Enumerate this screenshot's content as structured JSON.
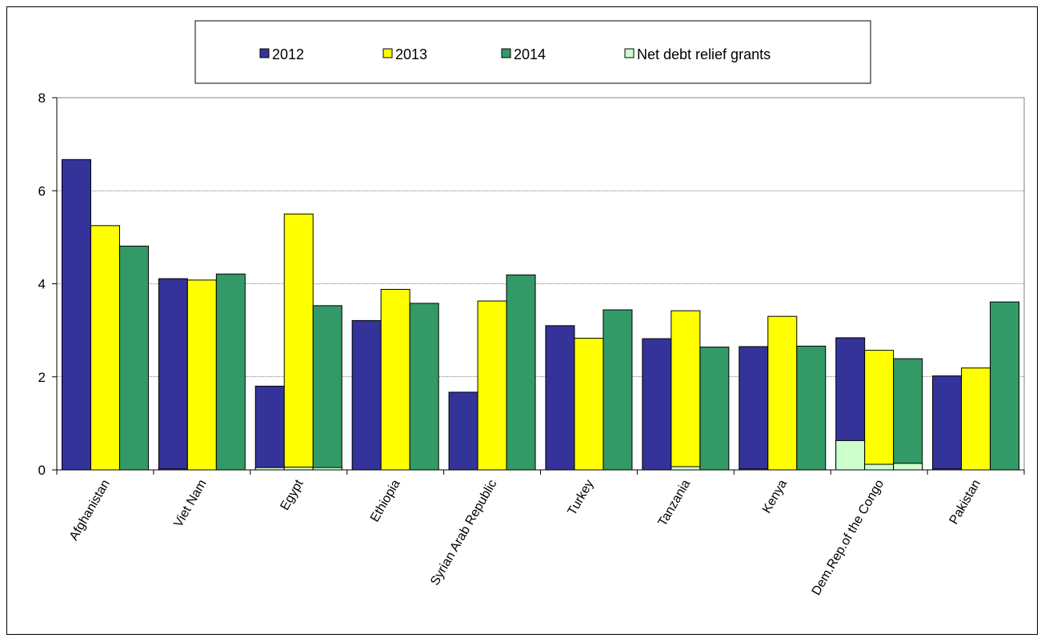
{
  "chart_data": {
    "type": "bar",
    "title": "",
    "xlabel": "",
    "ylabel": "",
    "ylim": [
      0,
      8
    ],
    "yticks": [
      0,
      2,
      4,
      6,
      8
    ],
    "grid": true,
    "legend_position": "top",
    "categories": [
      "Afghanistan",
      "Viet Nam",
      "Egypt",
      "Ethiopia",
      "Syrian Arab Republic",
      "Turkey",
      "Tanzania",
      "Kenya",
      "Dem.Rep.of the Congo",
      "Pakistan"
    ],
    "series": [
      {
        "name": "2012",
        "color": "#333399",
        "values": [
          6.67,
          4.11,
          1.8,
          3.21,
          1.67,
          3.1,
          2.82,
          2.65,
          2.84,
          2.02
        ]
      },
      {
        "name": "2013",
        "color": "#ffff00",
        "values": [
          5.25,
          4.08,
          5.5,
          3.88,
          3.63,
          2.83,
          3.42,
          3.3,
          2.57,
          2.19
        ]
      },
      {
        "name": "2014",
        "color": "#339966",
        "values": [
          4.81,
          4.21,
          3.53,
          3.58,
          4.19,
          3.44,
          2.64,
          2.66,
          2.39,
          3.61
        ]
      }
    ],
    "overlay_series": {
      "name": "Net debt relief grants",
      "color": "#ccffcc",
      "values": [
        [
          0.0,
          0.0,
          0.0
        ],
        [
          0.02,
          0.0,
          0.0
        ],
        [
          0.05,
          0.06,
          0.05
        ],
        [
          0.0,
          0.0,
          0.0
        ],
        [
          0.0,
          0.0,
          0.0
        ],
        [
          0.0,
          0.0,
          0.0
        ],
        [
          0.0,
          0.07,
          0.0
        ],
        [
          0.02,
          0.0,
          0.0
        ],
        [
          0.63,
          0.12,
          0.14
        ],
        [
          0.02,
          0.0,
          0.0
        ]
      ]
    }
  }
}
